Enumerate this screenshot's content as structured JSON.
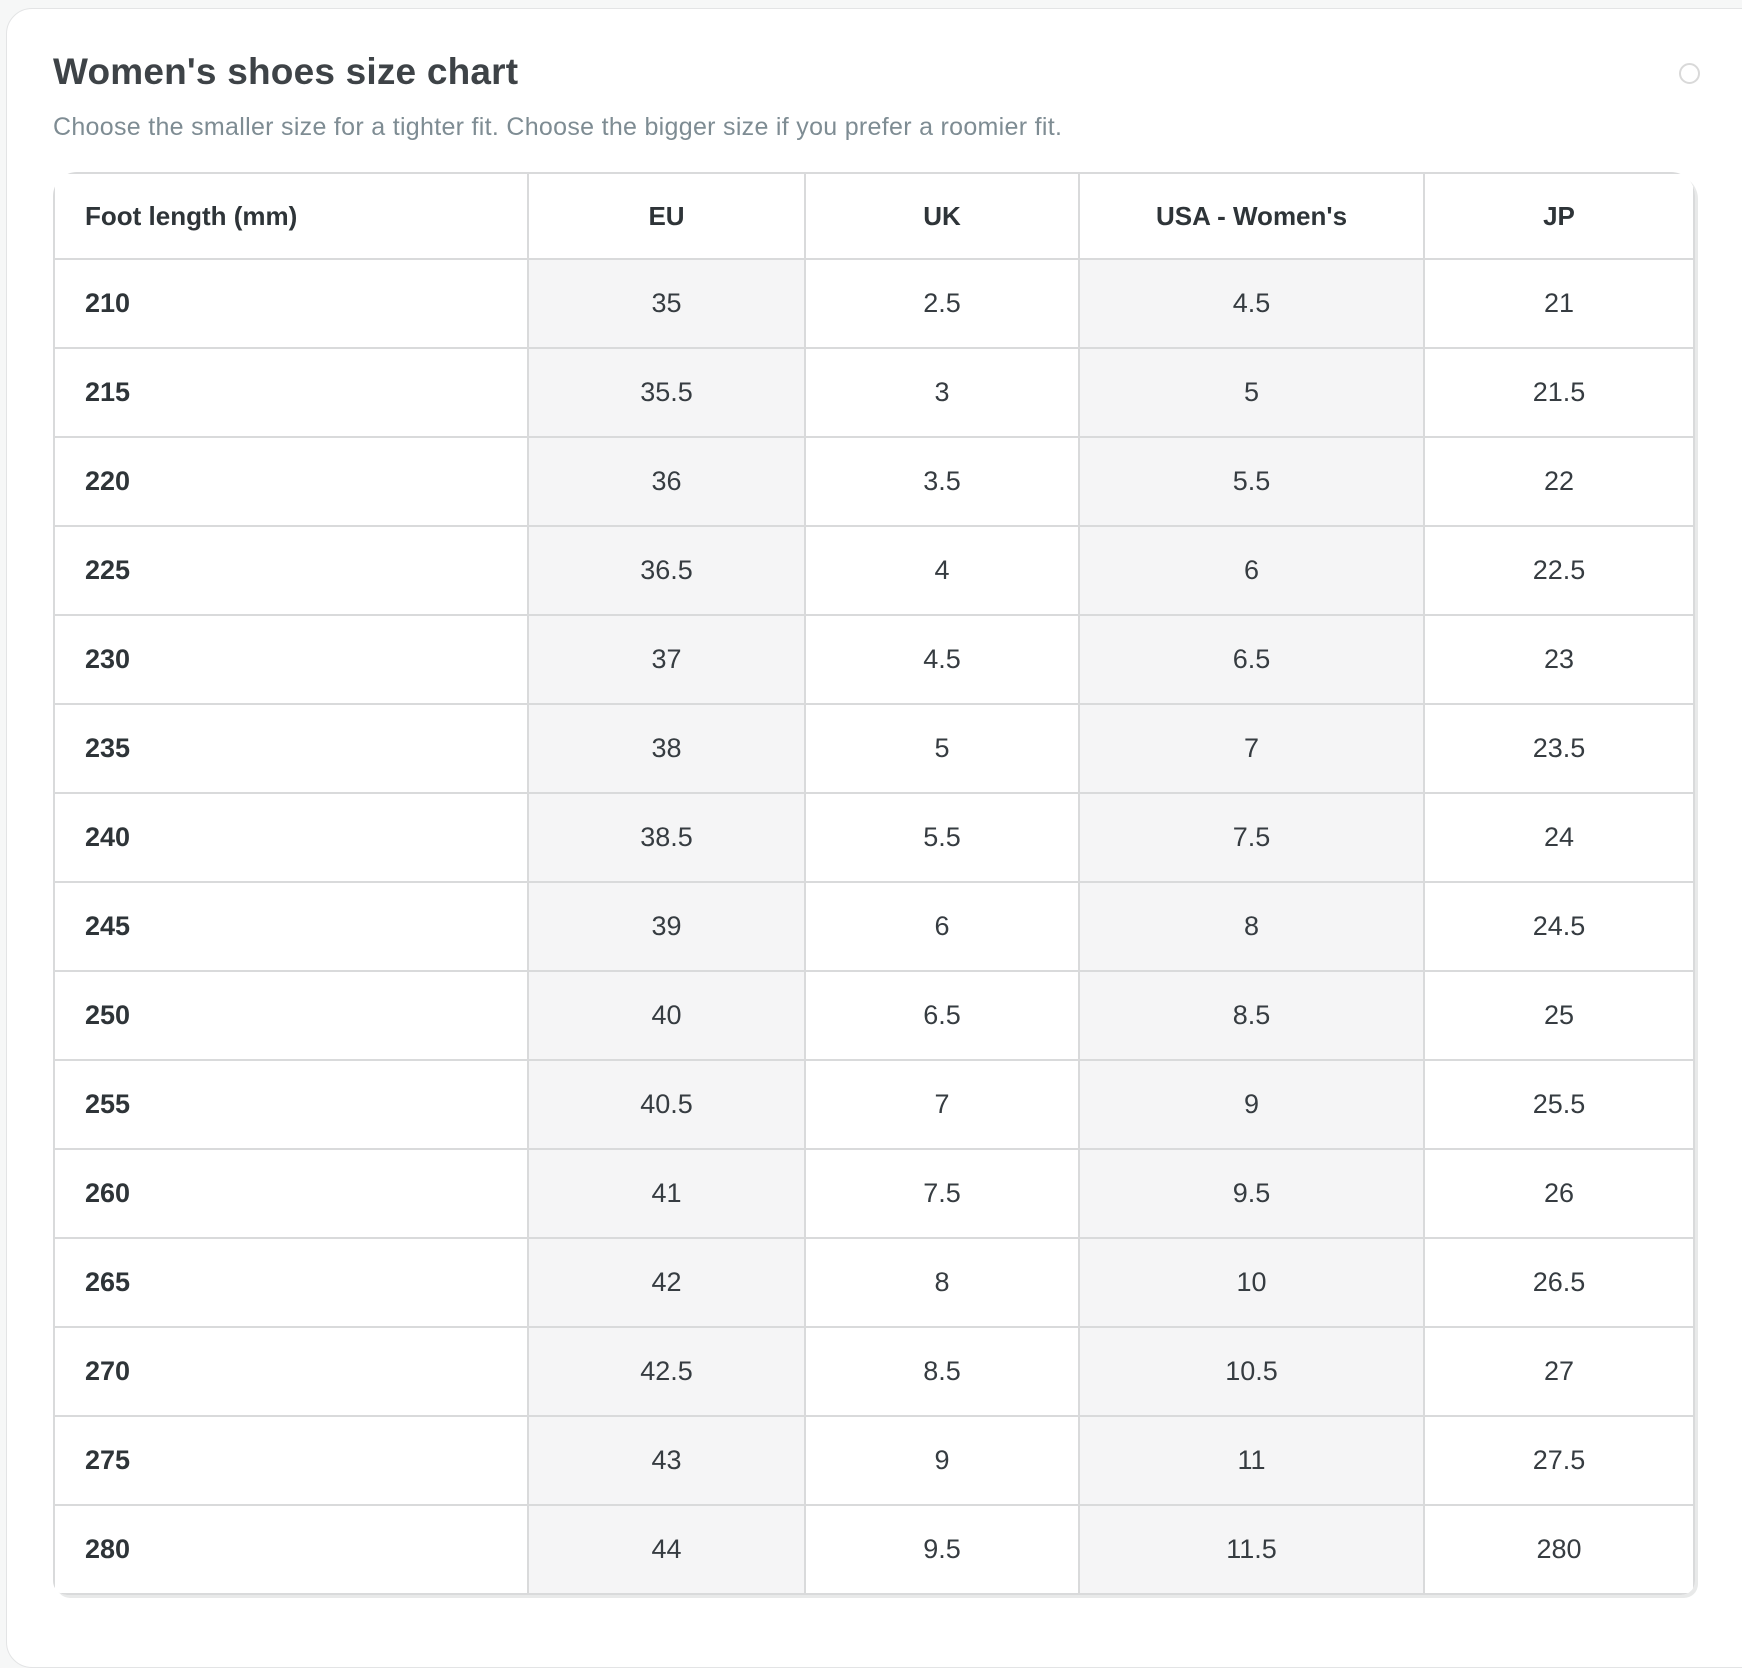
{
  "card": {
    "title": "Women's shoes size chart",
    "subtitle": "Choose the smaller size for a tighter fit. Choose the bigger size if you prefer a roomier fit."
  },
  "icons": {
    "top_right": "radio-circle-icon"
  },
  "colors": {
    "page_background": "#f6f7f7",
    "card_background": "#ffffff",
    "card_border": "#e3e4e5",
    "table_border": "#d9dadb",
    "stripe_background": "#f5f5f6",
    "title_text": "#3e4347",
    "subtitle_text": "#7e8c93",
    "cell_text": "#363c41",
    "bold_text": "#2e3438",
    "circle_icon_stroke": "#d9d9d9"
  },
  "table": {
    "columns": [
      {
        "key": "foot-length",
        "label": "Foot length (mm)",
        "align": "left",
        "striped": false
      },
      {
        "key": "eu",
        "label": "EU",
        "align": "center",
        "striped": true
      },
      {
        "key": "uk",
        "label": "UK",
        "align": "center",
        "striped": false
      },
      {
        "key": "usa-womens",
        "label": "USA - Women's",
        "align": "center",
        "striped": true
      },
      {
        "key": "jp",
        "label": "JP",
        "align": "center",
        "striped": false
      }
    ],
    "rows": [
      [
        "210",
        "35",
        "2.5",
        "4.5",
        "21"
      ],
      [
        "215",
        "35.5",
        "3",
        "5",
        "21.5"
      ],
      [
        "220",
        "36",
        "3.5",
        "5.5",
        "22"
      ],
      [
        "225",
        "36.5",
        "4",
        "6",
        "22.5"
      ],
      [
        "230",
        "37",
        "4.5",
        "6.5",
        "23"
      ],
      [
        "235",
        "38",
        "5",
        "7",
        "23.5"
      ],
      [
        "240",
        "38.5",
        "5.5",
        "7.5",
        "24"
      ],
      [
        "245",
        "39",
        "6",
        "8",
        "24.5"
      ],
      [
        "250",
        "40",
        "6.5",
        "8.5",
        "25"
      ],
      [
        "255",
        "40.5",
        "7",
        "9",
        "25.5"
      ],
      [
        "260",
        "41",
        "7.5",
        "9.5",
        "26"
      ],
      [
        "265",
        "42",
        "8",
        "10",
        "26.5"
      ],
      [
        "270",
        "42.5",
        "8.5",
        "10.5",
        "27"
      ],
      [
        "275",
        "43",
        "9",
        "11",
        "27.5"
      ],
      [
        "280",
        "44",
        "9.5",
        "11.5",
        "280"
      ]
    ]
  }
}
